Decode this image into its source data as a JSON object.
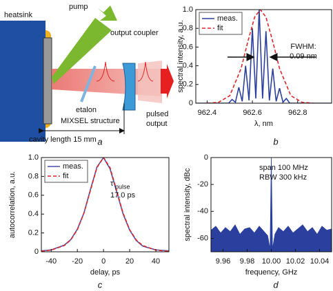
{
  "diagram": {
    "heatsink": "heatsink",
    "pump": "pump",
    "output_coupler": "output coupler",
    "etalon": "etalon",
    "mixsel": "MIXSEL structure",
    "pulsed": "pulsed",
    "output": "output",
    "cavity": "cavity length 15 mm",
    "caption": "a"
  },
  "chart_data": [
    {
      "type": "line",
      "caption": "b",
      "xlabel": "λ, nm",
      "ylabel": "spectral intensity, a.u.",
      "xlim": [
        962.35,
        962.95
      ],
      "xticks": [
        962.4,
        962.6,
        962.8
      ],
      "ylim": [
        0,
        1
      ],
      "yticks": [
        0,
        0.2,
        0.4,
        0.6,
        0.8,
        {
          "value": 1,
          "label": "1.0"
        }
      ],
      "legend": "upper left",
      "annotations": [
        "FWHM:",
        "0.09 nm"
      ],
      "series": [
        {
          "name": "meas.",
          "color": "#2b3f9e",
          "dash": false,
          "x": [
            962.35,
            962.495,
            962.51,
            962.525,
            962.54,
            962.555,
            962.57,
            962.585,
            962.6,
            962.615,
            962.63,
            962.645,
            962.66,
            962.675,
            962.69,
            962.705,
            962.72,
            962.735,
            962.75,
            962.765,
            962.95
          ],
          "values": [
            0,
            0,
            0.04,
            0.01,
            0.17,
            0.02,
            0.4,
            0.03,
            0.8,
            0.05,
            1.0,
            0.05,
            0.77,
            0.03,
            0.37,
            0.02,
            0.16,
            0.01,
            0.05,
            0,
            0
          ]
        },
        {
          "name": "fit",
          "color": "#e0242a",
          "dash": true,
          "x": [
            962.4,
            962.45,
            962.5,
            962.55,
            962.58,
            962.61,
            962.635,
            962.66,
            962.69,
            962.72,
            962.77,
            962.82,
            962.87
          ],
          "values": [
            0,
            0.009,
            0.08,
            0.37,
            0.66,
            0.92,
            1.0,
            0.92,
            0.66,
            0.37,
            0.08,
            0.009,
            0
          ]
        }
      ]
    },
    {
      "type": "line",
      "caption": "c",
      "xlabel": "delay, ps",
      "ylabel": "autocorrelation, a.u.",
      "xlim": [
        -47.5,
        50
      ],
      "xticks": [
        -40,
        -20,
        0,
        20,
        40
      ],
      "ylim": [
        0,
        1
      ],
      "yticks": [
        0,
        0.2,
        0.4,
        0.6,
        0.8,
        {
          "value": 1,
          "label": "1.0"
        }
      ],
      "legend": "upper left",
      "annotations": [
        "τ",
        "pulse",
        "17.0 ps"
      ],
      "x": [
        -47.5,
        -40,
        -30,
        -25,
        -20,
        -15,
        -10,
        -5,
        0,
        5,
        10,
        15,
        20,
        25,
        30,
        40,
        50
      ],
      "series": [
        {
          "name": "meas.",
          "color": "#4a4fa8",
          "dash": false,
          "values": [
            0.01,
            0.02,
            0.07,
            0.13,
            0.24,
            0.41,
            0.66,
            0.9,
            1.0,
            0.88,
            0.64,
            0.4,
            0.23,
            0.12,
            0.06,
            0.02,
            0.01
          ]
        },
        {
          "name": "fit",
          "color": "#e0242a",
          "dash": true,
          "values": [
            0.007,
            0.0175,
            0.066,
            0.126,
            0.234,
            0.409,
            0.651,
            0.893,
            1.0,
            0.893,
            0.651,
            0.409,
            0.234,
            0.126,
            0.066,
            0.0175,
            0.005
          ]
        }
      ]
    },
    {
      "type": "area",
      "caption": "d",
      "xlabel": "frequency, GHz",
      "ylabel": "spectral intensity, dBc",
      "xlim": [
        9.95,
        10.05
      ],
      "xticks": [
        9.96,
        9.98,
        {
          "value": 10,
          "label": "10.00"
        },
        10.02,
        10.04
      ],
      "ylim": [
        -70,
        0
      ],
      "yticks": [
        0,
        -20,
        -40,
        -60
      ],
      "annotations": [
        "span 100 MHz",
        "RBW 300 kHz"
      ],
      "color": "#2b3f9e",
      "x": [
        9.95,
        9.954,
        9.958,
        9.962,
        9.966,
        9.97,
        9.974,
        9.978,
        9.982,
        9.986,
        9.99,
        9.994,
        9.997,
        9.999,
        10.0,
        10.001,
        10.003,
        10.006,
        10.01,
        10.014,
        10.018,
        10.022,
        10.026,
        10.03,
        10.034,
        10.038,
        10.042,
        10.046,
        10.05
      ],
      "values": [
        -54,
        -51,
        -56,
        -52,
        -55,
        -50,
        -57,
        -53,
        -52,
        -56,
        -51,
        -55,
        -58,
        -68,
        0,
        -68,
        -57,
        -52,
        -55,
        -51,
        -56,
        -53,
        -50,
        -55,
        -52,
        -57,
        -51,
        -54,
        -53
      ]
    }
  ]
}
